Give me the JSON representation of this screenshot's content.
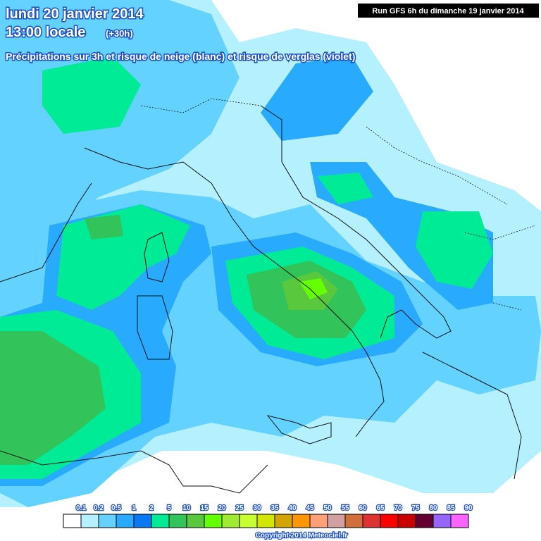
{
  "header": {
    "date": "lundi 20 janvier 2014",
    "time": "13:00 locale",
    "lead": "(+30h)",
    "subtitle": "Précipitations sur 3h et risque de neige (blanc) et risque de verglas (violet)",
    "run": "Run GFS 6h du dimanche 19 janvier 2014"
  },
  "legend": {
    "labels": [
      "0.1",
      "0.2",
      "0.5",
      "1",
      "2",
      "5",
      "10",
      "15",
      "20",
      "25",
      "30",
      "35",
      "40",
      "45",
      "50",
      "55",
      "60",
      "65",
      "70",
      "75",
      "80",
      "85",
      "90"
    ],
    "colors": [
      "#ffffff",
      "#b4f0ff",
      "#64d2ff",
      "#28aaff",
      "#0a78f0",
      "#00eb96",
      "#32c35a",
      "#5ac83c",
      "#64ff00",
      "#a0eb32",
      "#c8ff32",
      "#d2e600",
      "#d2a500",
      "#ff9600",
      "#ffa078",
      "#d2a0a0",
      "#d26e3c",
      "#dc3232",
      "#ff0000",
      "#c80000",
      "#640032",
      "#9664ff",
      "#ff64ff"
    ]
  },
  "copyright": "Copyright 2014 Meteociel.fr"
}
